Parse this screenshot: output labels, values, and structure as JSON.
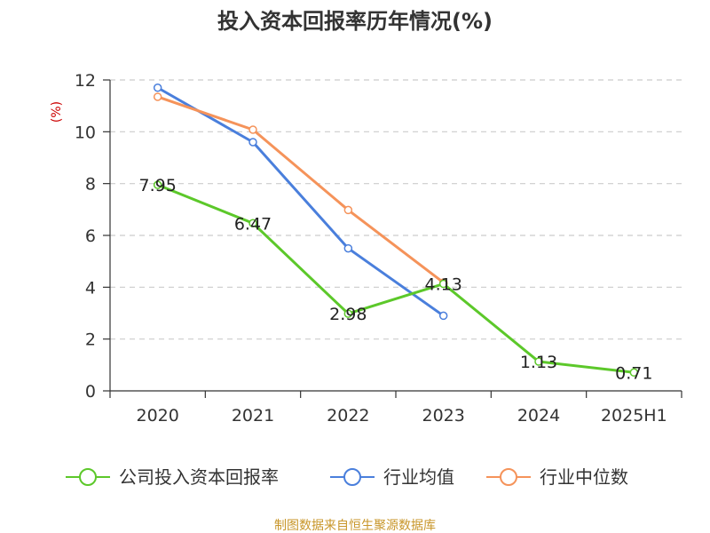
{
  "chart_data": {
    "type": "line",
    "title": "投入资本回报率历年情况(%)",
    "ylabel": "(%)",
    "ylim": [
      0,
      12
    ],
    "yticks": [
      0,
      2,
      4,
      6,
      8,
      10,
      12
    ],
    "categories": [
      "2020",
      "2021",
      "2022",
      "2023",
      "2024",
      "2025H1"
    ],
    "grid": true,
    "legend_position": "bottom",
    "series": [
      {
        "name": "公司投入资本回报率",
        "color": "#5cc82a",
        "values": [
          7.95,
          6.47,
          2.98,
          4.13,
          1.13,
          0.71
        ],
        "labels": [
          "7.95",
          "6.47",
          "2.98",
          "4.13",
          "1.13",
          "0.71"
        ]
      },
      {
        "name": "行业均值",
        "color": "#4a7fdc",
        "values": [
          11.7,
          9.6,
          5.5,
          2.9,
          null,
          null
        ]
      },
      {
        "name": "行业中位数",
        "color": "#f5935a",
        "values": [
          11.35,
          10.08,
          6.98,
          4.18,
          null,
          null
        ]
      }
    ]
  },
  "source_note": "制图数据来自恒生聚源数据库",
  "colors": {
    "axis": "#333333",
    "grid": "#cccccc",
    "ylabel": "#cc0000",
    "source": "#c8962a"
  }
}
